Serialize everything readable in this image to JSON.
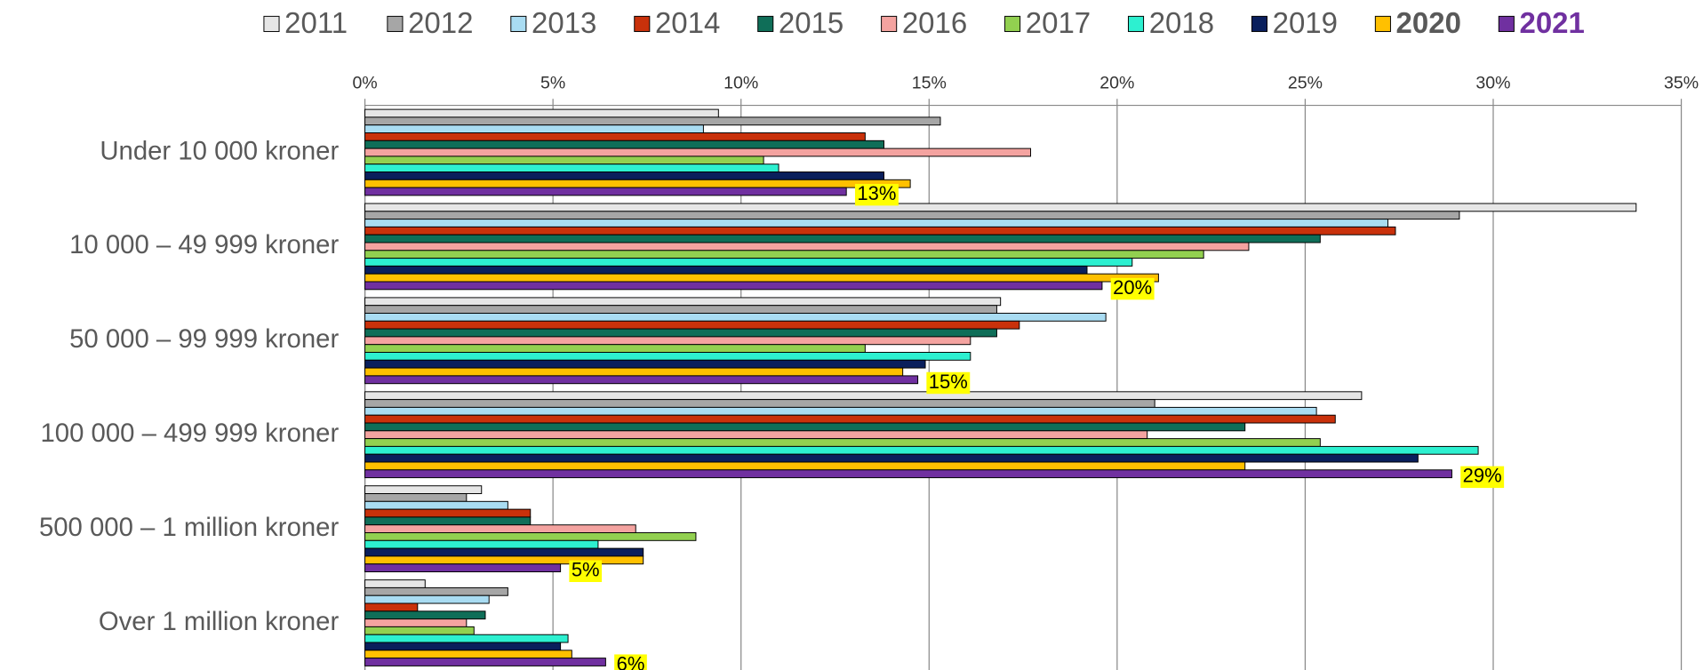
{
  "chart_data": {
    "type": "bar",
    "orientation": "horizontal",
    "categories": [
      "Under 10 000 kroner",
      "10 000 – 49 999 kroner",
      "50 000 – 99 999 kroner",
      "100 000 – 499 999 kroner",
      "500 000 – 1 million kroner",
      "Over 1 million kroner"
    ],
    "series": [
      {
        "name": "2011",
        "color": "#e6e6e6",
        "values": [
          9.4,
          33.8,
          16.9,
          26.5,
          3.1,
          1.6
        ]
      },
      {
        "name": "2012",
        "color": "#a6a6a6",
        "values": [
          15.3,
          29.1,
          16.8,
          21.0,
          2.7,
          3.8
        ]
      },
      {
        "name": "2013",
        "color": "#a9dcf2",
        "values": [
          9.0,
          27.2,
          19.7,
          25.3,
          3.8,
          3.3
        ]
      },
      {
        "name": "2014",
        "color": "#c9310b",
        "values": [
          13.3,
          27.4,
          17.4,
          25.8,
          4.4,
          1.4
        ]
      },
      {
        "name": "2015",
        "color": "#0f6e58",
        "values": [
          13.8,
          25.4,
          16.8,
          23.4,
          4.4,
          3.2
        ]
      },
      {
        "name": "2016",
        "color": "#f4a3a0",
        "values": [
          17.7,
          23.5,
          16.1,
          20.8,
          7.2,
          2.7
        ]
      },
      {
        "name": "2017",
        "color": "#92d050",
        "values": [
          10.6,
          22.3,
          13.3,
          25.4,
          8.8,
          2.9
        ]
      },
      {
        "name": "2018",
        "color": "#2df0d0",
        "values": [
          11.0,
          20.4,
          16.1,
          29.6,
          6.2,
          5.4
        ]
      },
      {
        "name": "2019",
        "color": "#0a1f5c",
        "values": [
          13.8,
          19.2,
          14.9,
          28.0,
          7.4,
          5.2
        ]
      },
      {
        "name": "2020",
        "color": "#ffc000",
        "legend_bold": true,
        "values": [
          14.5,
          21.1,
          14.3,
          23.4,
          7.4,
          5.5
        ]
      },
      {
        "name": "2021",
        "color": "#7030a0",
        "legend_bold": true,
        "legend_text_color": "#7030a0",
        "values": [
          12.8,
          19.6,
          14.7,
          28.9,
          5.2,
          6.4
        ],
        "value_labels": [
          "13%",
          "20%",
          "15%",
          "29%",
          "5%",
          "6%"
        ]
      }
    ],
    "xlim": [
      0,
      35
    ],
    "xticks": [
      {
        "value": 0,
        "label": "0%"
      },
      {
        "value": 5,
        "label": "5%"
      },
      {
        "value": 10,
        "label": "10%"
      },
      {
        "value": 15,
        "label": "15%"
      },
      {
        "value": 20,
        "label": "20%"
      },
      {
        "value": 25,
        "label": "25%"
      },
      {
        "value": 30,
        "label": "30%"
      },
      {
        "value": 35,
        "label": "35%"
      }
    ],
    "grid": true,
    "legend": "top",
    "value_label_background": "#ffff00"
  }
}
